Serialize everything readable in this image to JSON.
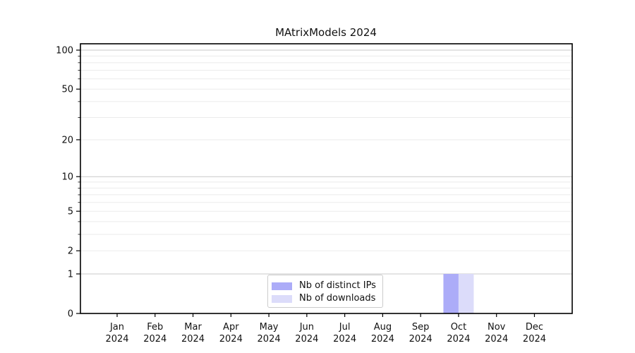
{
  "chart_data": {
    "type": "bar",
    "title": "MAtrixModels 2024",
    "categories": [
      "Jan 2024",
      "Feb 2024",
      "Mar 2024",
      "Apr 2024",
      "May 2024",
      "Jun 2024",
      "Jul 2024",
      "Aug 2024",
      "Sep 2024",
      "Oct 2024",
      "Nov 2024",
      "Dec 2024"
    ],
    "series": [
      {
        "name": "Nb of distinct IPs",
        "color": "#acacf8",
        "values": [
          0,
          0,
          0,
          0,
          0,
          0,
          0,
          0,
          0,
          1,
          0,
          0
        ]
      },
      {
        "name": "Nb of downloads",
        "color": "#dcdcfa",
        "values": [
          0,
          0,
          0,
          0,
          0,
          0,
          0,
          0,
          0,
          1,
          0,
          0
        ]
      }
    ],
    "y_axis": {
      "scale": "log1p",
      "ylim": [
        0,
        100
      ],
      "labeled_ticks": [
        0,
        1,
        2,
        5,
        10,
        20,
        50,
        100
      ],
      "major_gridlines": [
        1,
        10,
        100
      ],
      "minor_gridlines": [
        2,
        3,
        4,
        5,
        6,
        7,
        8,
        9,
        20,
        30,
        40,
        50,
        60,
        70,
        80,
        90
      ]
    },
    "legend_position": "lower-center",
    "grid": true
  },
  "colors": {
    "background": "#ffffff",
    "axis": "#000000",
    "text": "#111111",
    "major_grid": "#c8c8c8",
    "minor_grid": "#ebebeb",
    "legend_border": "#cccccc"
  }
}
